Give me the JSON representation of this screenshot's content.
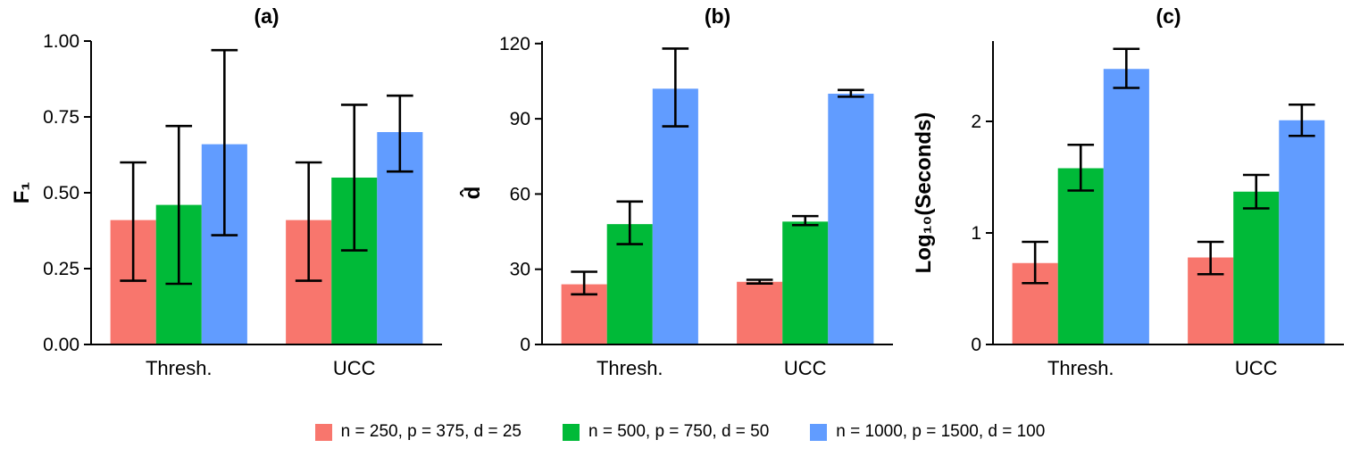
{
  "figure": {
    "background": "#ffffff",
    "axis_color": "#000000",
    "errorbar_color": "#000000"
  },
  "legend": {
    "items": [
      {
        "label": "n = 250, p = 375, d = 25",
        "color": "#F8766D"
      },
      {
        "label": "n = 500, p = 750, d = 50",
        "color": "#00BA38"
      },
      {
        "label": "n = 1000, p = 1500, d = 100",
        "color": "#619CFF"
      }
    ]
  },
  "chart_data": [
    {
      "type": "bar",
      "title": "(a)",
      "ylabel": "F₁",
      "xlabel": "",
      "ylim": [
        0,
        1.0
      ],
      "yticks": [
        0,
        0.25,
        0.5,
        0.75,
        1.0
      ],
      "ytick_labels": [
        "0.00",
        "0.25",
        "0.50",
        "0.75",
        "1.00"
      ],
      "categories": [
        "Thresh.",
        "UCC"
      ],
      "grid": false,
      "legend_position": "bottom",
      "series": [
        {
          "name": "n = 250, p = 375, d = 25",
          "color": "#F8766D",
          "values": [
            0.41,
            0.41
          ],
          "err_low": [
            0.21,
            0.21
          ],
          "err_high": [
            0.6,
            0.6
          ]
        },
        {
          "name": "n = 500, p = 750, d = 50",
          "color": "#00BA38",
          "values": [
            0.46,
            0.55
          ],
          "err_low": [
            0.2,
            0.31
          ],
          "err_high": [
            0.72,
            0.79
          ]
        },
        {
          "name": "n = 1000, p = 1500, d = 100",
          "color": "#619CFF",
          "values": [
            0.66,
            0.7
          ],
          "err_low": [
            0.36,
            0.57
          ],
          "err_high": [
            0.97,
            0.82
          ]
        }
      ]
    },
    {
      "type": "bar",
      "title": "(b)",
      "ylabel": "d̂",
      "xlabel": "",
      "ylim": [
        0,
        121
      ],
      "yticks": [
        0,
        30,
        60,
        90,
        120
      ],
      "ytick_labels": [
        "0",
        "30",
        "60",
        "90",
        "120"
      ],
      "categories": [
        "Thresh.",
        "UCC"
      ],
      "grid": false,
      "legend_position": "bottom",
      "series": [
        {
          "name": "n = 250, p = 375, d = 25",
          "color": "#F8766D",
          "values": [
            24,
            25
          ],
          "err_low": [
            20,
            24.3
          ],
          "err_high": [
            29,
            25.8
          ]
        },
        {
          "name": "n = 500, p = 750, d = 50",
          "color": "#00BA38",
          "values": [
            48,
            49
          ],
          "err_low": [
            40,
            47.6
          ],
          "err_high": [
            57,
            51.2
          ]
        },
        {
          "name": "n = 1000, p = 1500, d = 100",
          "color": "#619CFF",
          "values": [
            102,
            100
          ],
          "err_low": [
            87,
            98.8
          ],
          "err_high": [
            118,
            101.5
          ]
        }
      ]
    },
    {
      "type": "bar",
      "title": "(c)",
      "ylabel": "Log₁₀(Seconds)",
      "xlabel": "",
      "ylim": [
        0,
        2.72
      ],
      "yticks": [
        0,
        1,
        2
      ],
      "ytick_labels": [
        "0",
        "1",
        "2"
      ],
      "categories": [
        "Thresh.",
        "UCC"
      ],
      "grid": false,
      "legend_position": "bottom",
      "series": [
        {
          "name": "n = 250, p = 375, d = 25",
          "color": "#F8766D",
          "values": [
            0.73,
            0.78
          ],
          "err_low": [
            0.55,
            0.63
          ],
          "err_high": [
            0.92,
            0.92
          ]
        },
        {
          "name": "n = 500, p = 750, d = 50",
          "color": "#00BA38",
          "values": [
            1.58,
            1.37
          ],
          "err_low": [
            1.38,
            1.22
          ],
          "err_high": [
            1.79,
            1.52
          ]
        },
        {
          "name": "n = 1000, p = 1500, d = 100",
          "color": "#619CFF",
          "values": [
            2.47,
            2.01
          ],
          "err_low": [
            2.3,
            1.87
          ],
          "err_high": [
            2.65,
            2.15
          ]
        }
      ]
    }
  ]
}
